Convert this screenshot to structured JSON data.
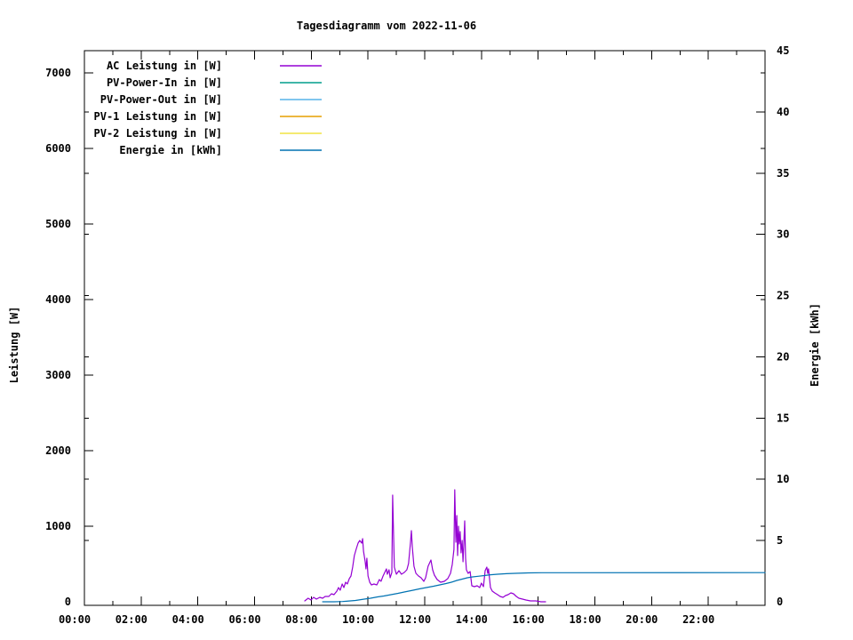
{
  "title": "Tagesdiagramm vom 2022-11-06",
  "colors": {
    "ac": "#9400D3",
    "pv_power_in": "#009E8C",
    "pv_power_out": "#56B4E9",
    "pv1": "#E69F00",
    "pv2": "#F0E442",
    "energie": "#0072B2",
    "axis": "#000000",
    "background": "#FFFFFF"
  },
  "legend": {
    "items": [
      {
        "label": "AC Leistung in [W]",
        "color": "ac"
      },
      {
        "label": "PV-Power-In in [W]",
        "color": "pv_power_in"
      },
      {
        "label": "PV-Power-Out in [W]",
        "color": "pv_power_out"
      },
      {
        "label": "PV-1 Leistung in [W]",
        "color": "pv1"
      },
      {
        "label": "PV-2 Leistung in [W]",
        "color": "pv2"
      },
      {
        "label": "Energie in [kWh]",
        "color": "energie"
      }
    ]
  },
  "axes": {
    "x": {
      "min": 0,
      "max": 24,
      "major_step_hours": 2,
      "minor_step_hours": 1,
      "tick_labels": [
        "00:00",
        "02:00",
        "04:00",
        "06:00",
        "08:00",
        "10:00",
        "12:00",
        "14:00",
        "16:00",
        "18:00",
        "20:00",
        "22:00"
      ]
    },
    "y_left": {
      "label": "Leistung [W]",
      "min": 0,
      "max": 7000,
      "tick_step": 1000,
      "tick_labels": [
        "0",
        "1000",
        "2000",
        "3000",
        "4000",
        "5000",
        "6000",
        "7000"
      ]
    },
    "y_right": {
      "label": "Energie [kWh]",
      "min": 0,
      "max": 45,
      "tick_step": 5,
      "tick_labels": [
        "0",
        "5",
        "10",
        "15",
        "20",
        "25",
        "30",
        "35",
        "40",
        "45"
      ]
    }
  },
  "chart_data": {
    "type": "line",
    "title": "Tagesdiagramm vom 2022-11-06",
    "x_unit": "time of day (hours, 00:00-24:00)",
    "grid": false,
    "legend_position": "top-left-inside",
    "series": [
      {
        "name": "AC Leistung in [W]",
        "color": "ac",
        "axis": "y_left",
        "points": [
          [
            7.77,
            12
          ],
          [
            7.89,
            47
          ],
          [
            7.99,
            24
          ],
          [
            8.08,
            59
          ],
          [
            8.18,
            35
          ],
          [
            8.3,
            59
          ],
          [
            8.4,
            47
          ],
          [
            8.49,
            71
          ],
          [
            8.62,
            71
          ],
          [
            8.71,
            106
          ],
          [
            8.8,
            94
          ],
          [
            8.9,
            141
          ],
          [
            8.96,
            188
          ],
          [
            9.02,
            153
          ],
          [
            9.09,
            235
          ],
          [
            9.15,
            188
          ],
          [
            9.21,
            259
          ],
          [
            9.27,
            235
          ],
          [
            9.34,
            306
          ],
          [
            9.4,
            341
          ],
          [
            9.46,
            459
          ],
          [
            9.52,
            612
          ],
          [
            9.59,
            706
          ],
          [
            9.65,
            776
          ],
          [
            9.71,
            812
          ],
          [
            9.78,
            776
          ],
          [
            9.81,
            835
          ],
          [
            9.84,
            671
          ],
          [
            9.9,
            529
          ],
          [
            9.93,
            435
          ],
          [
            9.96,
            576
          ],
          [
            10.0,
            341
          ],
          [
            10.06,
            259
          ],
          [
            10.12,
            224
          ],
          [
            10.21,
            235
          ],
          [
            10.31,
            224
          ],
          [
            10.4,
            294
          ],
          [
            10.46,
            271
          ],
          [
            10.53,
            341
          ],
          [
            10.59,
            388
          ],
          [
            10.65,
            435
          ],
          [
            10.68,
            365
          ],
          [
            10.74,
            424
          ],
          [
            10.78,
            318
          ],
          [
            10.84,
            388
          ],
          [
            10.87,
            1412
          ],
          [
            10.9,
            906
          ],
          [
            10.93,
            459
          ],
          [
            11.0,
            365
          ],
          [
            11.09,
            412
          ],
          [
            11.18,
            365
          ],
          [
            11.28,
            388
          ],
          [
            11.37,
            424
          ],
          [
            11.43,
            506
          ],
          [
            11.5,
            788
          ],
          [
            11.53,
            941
          ],
          [
            11.56,
            729
          ],
          [
            11.62,
            471
          ],
          [
            11.69,
            376
          ],
          [
            11.78,
            341
          ],
          [
            11.87,
            318
          ],
          [
            11.97,
            271
          ],
          [
            12.03,
            318
          ],
          [
            12.12,
            471
          ],
          [
            12.22,
            553
          ],
          [
            12.28,
            424
          ],
          [
            12.34,
            353
          ],
          [
            12.44,
            294
          ],
          [
            12.56,
            259
          ],
          [
            12.69,
            271
          ],
          [
            12.81,
            306
          ],
          [
            12.91,
            376
          ],
          [
            12.97,
            494
          ],
          [
            13.03,
            694
          ],
          [
            13.06,
            1482
          ],
          [
            13.1,
            788
          ],
          [
            13.13,
            1141
          ],
          [
            13.16,
            612
          ],
          [
            13.19,
            1000
          ],
          [
            13.22,
            765
          ],
          [
            13.25,
            929
          ],
          [
            13.28,
            647
          ],
          [
            13.32,
            812
          ],
          [
            13.35,
            529
          ],
          [
            13.38,
            765
          ],
          [
            13.41,
            1071
          ],
          [
            13.44,
            576
          ],
          [
            13.47,
            424
          ],
          [
            13.53,
            376
          ],
          [
            13.6,
            400
          ],
          [
            13.66,
            212
          ],
          [
            13.75,
            200
          ],
          [
            13.85,
            212
          ],
          [
            13.94,
            188
          ],
          [
            14.0,
            247
          ],
          [
            14.07,
            200
          ],
          [
            14.13,
            412
          ],
          [
            14.19,
            459
          ],
          [
            14.22,
            376
          ],
          [
            14.25,
            435
          ],
          [
            14.32,
            188
          ],
          [
            14.38,
            141
          ],
          [
            14.47,
            118
          ],
          [
            14.57,
            94
          ],
          [
            14.66,
            71
          ],
          [
            14.76,
            59
          ],
          [
            14.85,
            82
          ],
          [
            14.94,
            94
          ],
          [
            15.04,
            118
          ],
          [
            15.13,
            106
          ],
          [
            15.23,
            71
          ],
          [
            15.32,
            47
          ],
          [
            15.45,
            35
          ],
          [
            15.57,
            24
          ],
          [
            15.73,
            12
          ],
          [
            15.92,
            12
          ],
          [
            16.1,
            0
          ],
          [
            16.26,
            0
          ]
        ]
      },
      {
        "name": "PV-Power-In in [W]",
        "color": "pv_power_in",
        "axis": "y_left",
        "points": []
      },
      {
        "name": "PV-Power-Out in [W]",
        "color": "pv_power_out",
        "axis": "y_left",
        "points": []
      },
      {
        "name": "PV-1 Leistung in [W]",
        "color": "pv1",
        "axis": "y_left",
        "points": []
      },
      {
        "name": "PV-2 Leistung in [W]",
        "color": "pv2",
        "axis": "y_left",
        "points": []
      },
      {
        "name": "Energie in [kWh]",
        "color": "energie",
        "axis": "y_right",
        "points": [
          [
            8.4,
            0
          ],
          [
            8.8,
            0
          ],
          [
            9.1,
            0.02
          ],
          [
            9.24,
            0.04
          ],
          [
            9.56,
            0.11
          ],
          [
            9.87,
            0.22
          ],
          [
            10.09,
            0.29
          ],
          [
            10.34,
            0.4
          ],
          [
            10.56,
            0.47
          ],
          [
            10.81,
            0.58
          ],
          [
            11.06,
            0.69
          ],
          [
            11.28,
            0.8
          ],
          [
            11.59,
            0.94
          ],
          [
            11.81,
            1.05
          ],
          [
            12.06,
            1.16
          ],
          [
            12.31,
            1.27
          ],
          [
            12.53,
            1.38
          ],
          [
            12.75,
            1.49
          ],
          [
            12.94,
            1.6
          ],
          [
            13.13,
            1.74
          ],
          [
            13.32,
            1.85
          ],
          [
            13.5,
            1.96
          ],
          [
            13.69,
            2.03
          ],
          [
            13.88,
            2.08
          ],
          [
            14.1,
            2.14
          ],
          [
            14.32,
            2.21
          ],
          [
            14.57,
            2.25
          ],
          [
            14.88,
            2.29
          ],
          [
            15.19,
            2.32
          ],
          [
            15.66,
            2.36
          ],
          [
            16.13,
            2.37
          ],
          [
            24.0,
            2.38
          ]
        ]
      }
    ]
  }
}
